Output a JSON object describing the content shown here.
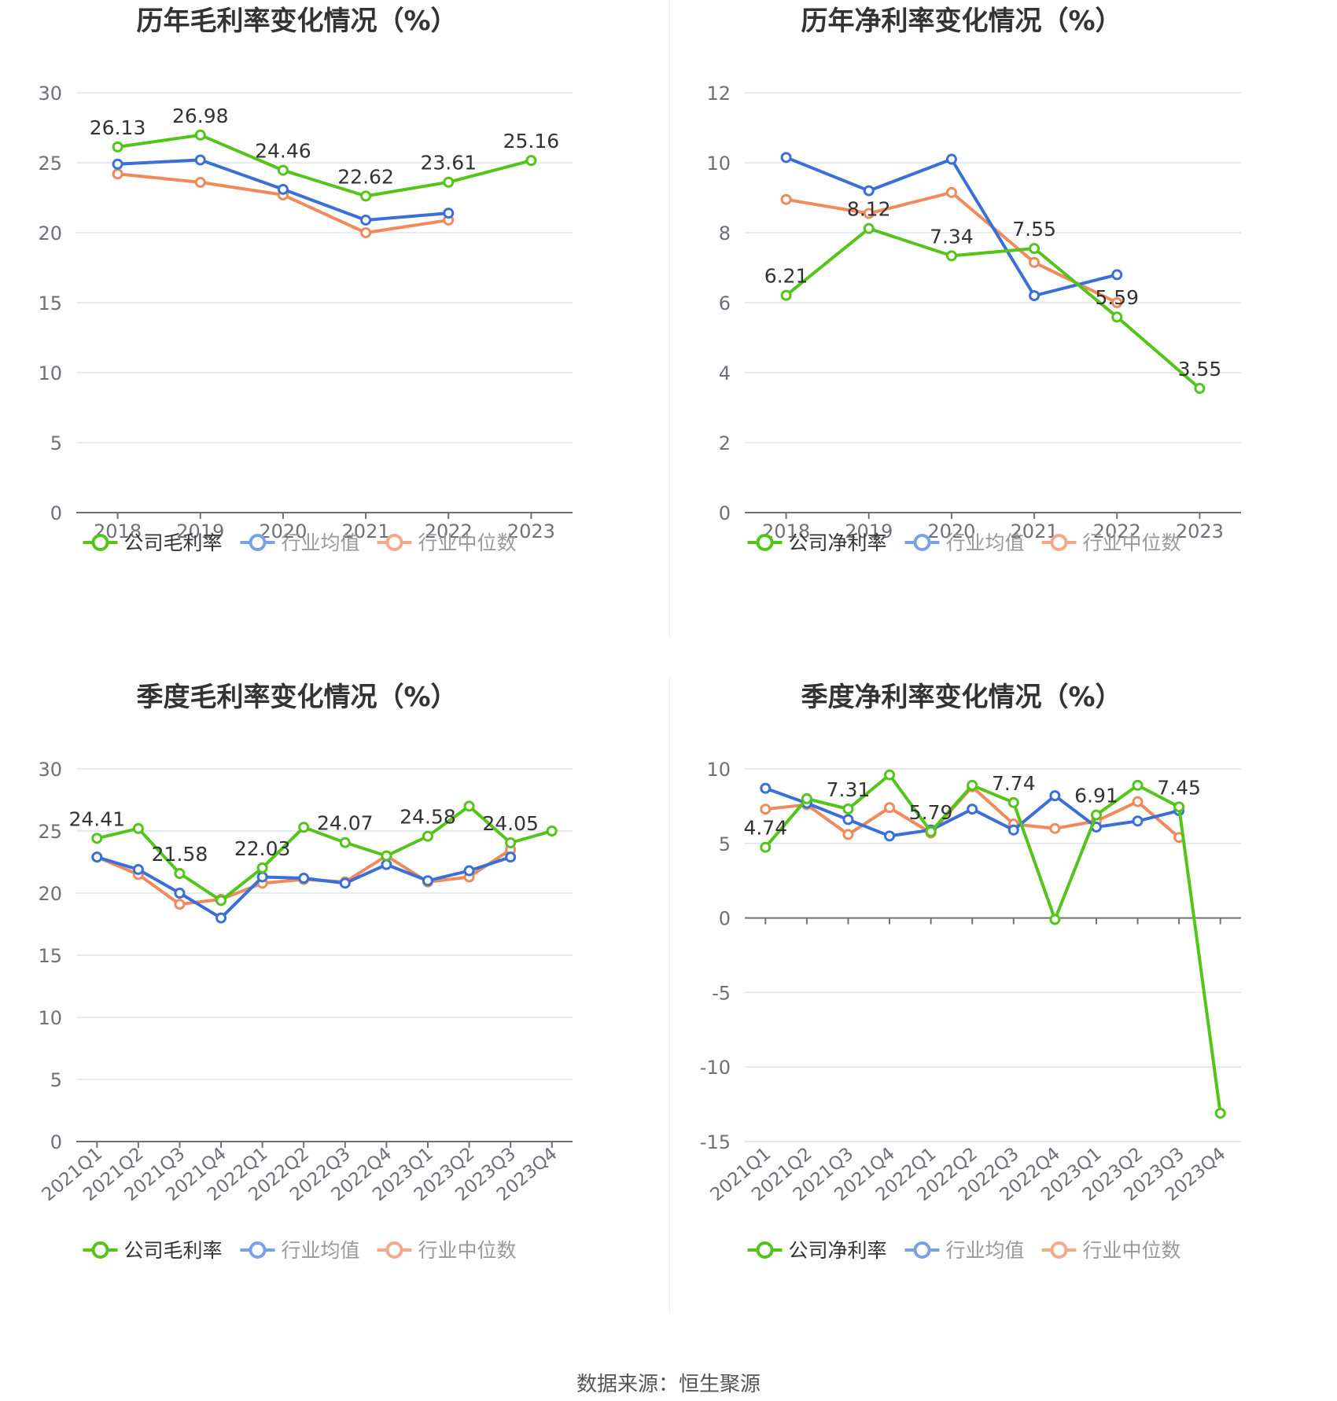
{
  "colors": {
    "company": "#52c41a",
    "industry_avg": "#3b6fd8",
    "industry_median": "#f08a5d",
    "grid": "#dde3ef",
    "axis_text": "#6e7079",
    "title": "#333333"
  },
  "source_text": "数据来源：恒生聚源",
  "chart_data": [
    {
      "id": "annual-gross",
      "type": "line",
      "title": "历年毛利率变化情况（%）",
      "x": [
        "2018",
        "2019",
        "2020",
        "2021",
        "2022",
        "2023"
      ],
      "ylim": [
        0,
        30
      ],
      "yticks": [
        0,
        5,
        10,
        15,
        20,
        25,
        30
      ],
      "grid": true,
      "legend_position": "bottom",
      "label_series": 0,
      "series": [
        {
          "name": "公司毛利率",
          "values": [
            26.13,
            26.98,
            24.46,
            22.62,
            23.61,
            25.16
          ],
          "labels": [
            "26.13",
            "26.98",
            "24.46",
            "22.62",
            "23.61",
            "25.16"
          ]
        },
        {
          "name": "行业均值",
          "values": [
            24.9,
            25.2,
            23.1,
            20.9,
            21.4,
            null
          ]
        },
        {
          "name": "行业中位数",
          "values": [
            24.2,
            23.6,
            22.7,
            20.0,
            20.9,
            null
          ]
        }
      ]
    },
    {
      "id": "annual-net",
      "type": "line",
      "title": "历年净利率变化情况（%）",
      "x": [
        "2018",
        "2019",
        "2020",
        "2021",
        "2022",
        "2023"
      ],
      "ylim": [
        0,
        12
      ],
      "yticks": [
        0,
        2,
        4,
        6,
        8,
        10,
        12
      ],
      "grid": true,
      "legend_position": "bottom",
      "label_series": 0,
      "series": [
        {
          "name": "公司净利率",
          "values": [
            6.21,
            8.12,
            7.34,
            7.55,
            5.59,
            3.55
          ],
          "labels": [
            "6.21",
            "8.12",
            "7.34",
            "7.55",
            "5.59",
            "3.55"
          ]
        },
        {
          "name": "行业均值",
          "values": [
            10.15,
            9.2,
            10.1,
            6.2,
            6.8,
            null
          ]
        },
        {
          "name": "行业中位数",
          "values": [
            8.95,
            8.55,
            9.15,
            7.15,
            6.0,
            null
          ]
        }
      ]
    },
    {
      "id": "quarterly-gross",
      "type": "line",
      "title": "季度毛利率变化情况（%）",
      "x": [
        "2021Q1",
        "2021Q2",
        "2021Q3",
        "2021Q4",
        "2022Q1",
        "2022Q2",
        "2022Q3",
        "2022Q4",
        "2023Q1",
        "2023Q2",
        "2023Q3",
        "2023Q4"
      ],
      "ylim": [
        0,
        30
      ],
      "yticks": [
        0,
        5,
        10,
        15,
        20,
        25,
        30
      ],
      "grid": true,
      "legend_position": "bottom",
      "label_series": 0,
      "series": [
        {
          "name": "公司毛利率",
          "values": [
            24.41,
            25.2,
            21.58,
            19.4,
            22.03,
            25.3,
            24.07,
            23.0,
            24.58,
            27.0,
            24.05,
            25.0
          ],
          "labels": [
            "24.41",
            "",
            "21.58",
            "",
            "22.03",
            "",
            "24.07",
            "",
            "24.58",
            "",
            "24.05",
            ""
          ]
        },
        {
          "name": "行业均值",
          "values": [
            22.9,
            21.9,
            20.0,
            18.0,
            21.3,
            21.2,
            20.8,
            22.3,
            21.0,
            21.8,
            22.9,
            null
          ]
        },
        {
          "name": "行业中位数",
          "values": [
            22.9,
            21.5,
            19.1,
            19.5,
            20.8,
            21.1,
            20.9,
            23.0,
            20.9,
            21.3,
            23.5,
            null
          ]
        }
      ]
    },
    {
      "id": "quarterly-net",
      "type": "line",
      "title": "季度净利率变化情况（%）",
      "x": [
        "2021Q1",
        "2021Q2",
        "2021Q3",
        "2021Q4",
        "2022Q1",
        "2022Q2",
        "2022Q3",
        "2022Q4",
        "2023Q1",
        "2023Q2",
        "2023Q3",
        "2023Q4"
      ],
      "ylim": [
        -15,
        10
      ],
      "yticks": [
        -15,
        -10,
        -5,
        0,
        5,
        10
      ],
      "grid": true,
      "legend_position": "bottom",
      "label_series": 0,
      "series": [
        {
          "name": "公司净利率",
          "values": [
            4.74,
            8.0,
            7.31,
            9.6,
            5.79,
            8.9,
            7.74,
            -0.1,
            6.91,
            8.9,
            7.45,
            -13.1
          ],
          "labels": [
            "4.74",
            "",
            "7.31",
            "",
            "5.79",
            "",
            "7.74",
            "",
            "6.91",
            "",
            "7.45",
            ""
          ]
        },
        {
          "name": "行业均值",
          "values": [
            8.7,
            7.7,
            6.6,
            5.5,
            5.9,
            7.3,
            5.9,
            8.2,
            6.1,
            6.5,
            7.2,
            null
          ]
        },
        {
          "name": "行业中位数",
          "values": [
            7.3,
            7.6,
            5.6,
            7.4,
            5.7,
            8.8,
            6.3,
            6.0,
            6.5,
            7.8,
            5.4,
            null
          ]
        }
      ]
    }
  ]
}
